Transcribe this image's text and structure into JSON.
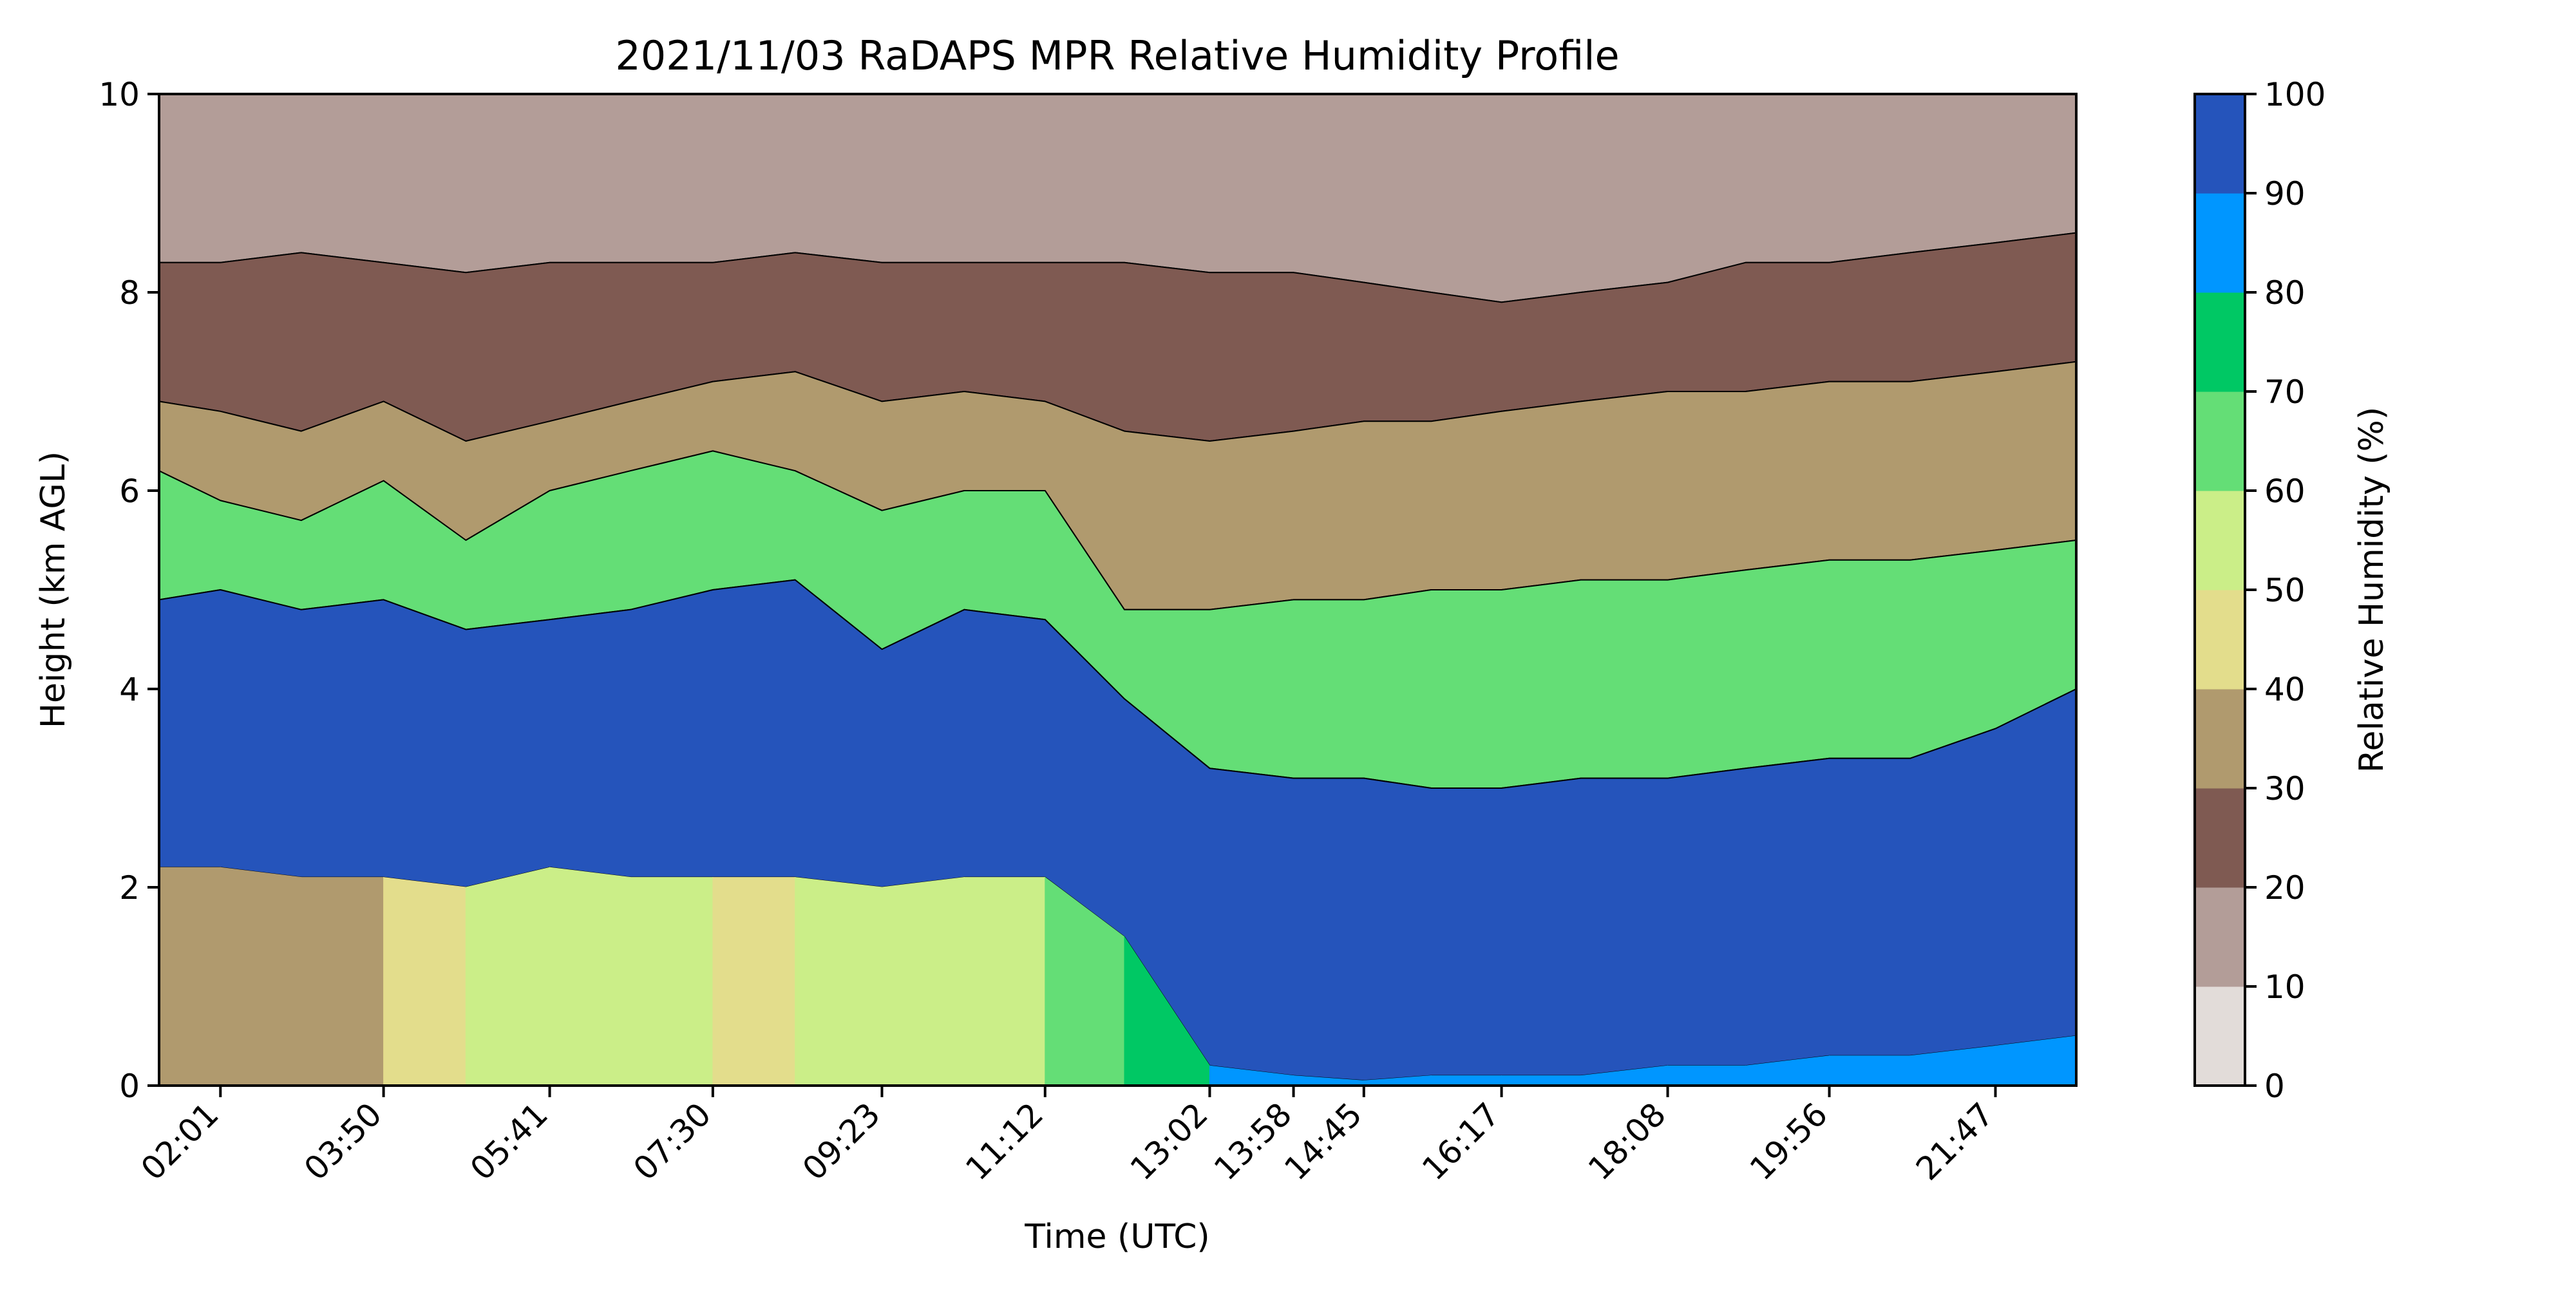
{
  "chart_data": {
    "type": "heatmap",
    "title": "2021/11/03 RaDAPS MPR Relative Humidity Profile",
    "xlabel": "Time (UTC)",
    "ylabel": "Height (km AGL)",
    "x_start": "01:20",
    "x_end": "22:41",
    "x_ticks": [
      "02:01",
      "03:50",
      "05:41",
      "07:30",
      "09:23",
      "11:12",
      "13:02",
      "13:58",
      "14:45",
      "16:17",
      "18:08",
      "19:56",
      "21:47"
    ],
    "ylim": [
      0,
      10
    ],
    "y_ticks": [
      0,
      2,
      4,
      6,
      8,
      10
    ],
    "colorbar": {
      "label": "Relative Humidity (%)",
      "levels": [
        0,
        10,
        20,
        30,
        40,
        50,
        60,
        70,
        80,
        90,
        100
      ],
      "colors": [
        "#e2dcd9",
        "#b39d98",
        "#7f5a52",
        "#b09a6e",
        "#e3dd8c",
        "#cbee88",
        "#64de76",
        "#00c864",
        "#0096ff",
        "#2554bb"
      ]
    },
    "rh_boundaries_km": {
      "note_levels": "heights (km AGL) where RH crosses each level; rows = times",
      "times": [
        "01:20",
        "02:01",
        "02:55",
        "03:50",
        "04:45",
        "05:41",
        "06:35",
        "07:30",
        "08:25",
        "09:23",
        "10:18",
        "11:12",
        "12:05",
        "13:02",
        "13:58",
        "14:45",
        "15:30",
        "16:17",
        "17:10",
        "18:08",
        "19:00",
        "19:56",
        "20:50",
        "21:47",
        "22:41"
      ],
      "rh20_top": [
        8.3,
        8.3,
        8.4,
        8.3,
        8.2,
        8.3,
        8.3,
        8.3,
        8.4,
        8.3,
        8.3,
        8.3,
        8.3,
        8.2,
        8.2,
        8.1,
        8.0,
        7.9,
        8.0,
        8.1,
        8.3,
        8.3,
        8.4,
        8.5,
        8.6
      ],
      "rh30_top": [
        6.9,
        6.8,
        6.6,
        6.9,
        6.5,
        6.7,
        6.9,
        7.1,
        7.2,
        6.9,
        7.0,
        6.9,
        6.6,
        6.5,
        6.6,
        6.7,
        6.7,
        6.8,
        6.9,
        7.0,
        7.0,
        7.1,
        7.1,
        7.2,
        7.3
      ],
      "rh50_top": [
        6.2,
        5.9,
        5.7,
        6.1,
        5.5,
        6.0,
        6.2,
        6.4,
        6.2,
        5.8,
        6.0,
        6.0,
        4.8,
        4.8,
        4.9,
        4.9,
        5.0,
        5.0,
        5.1,
        5.1,
        5.2,
        5.3,
        5.3,
        5.4,
        5.5
      ],
      "rh80_top": [
        4.9,
        5.0,
        4.8,
        4.9,
        4.6,
        4.7,
        4.8,
        5.0,
        5.1,
        4.4,
        4.8,
        4.7,
        3.9,
        3.2,
        3.1,
        3.1,
        3.0,
        3.0,
        3.1,
        3.1,
        3.2,
        3.3,
        3.3,
        3.6,
        4.0
      ],
      "low_top": [
        2.2,
        2.2,
        2.1,
        2.1,
        2.0,
        2.2,
        2.1,
        2.1,
        2.1,
        2.0,
        2.1,
        2.1,
        1.5,
        0.2,
        0.1,
        0.05,
        0.1,
        0.1,
        0.1,
        0.2,
        0.2,
        0.3,
        0.3,
        0.4,
        0.5
      ],
      "low_rh": [
        35,
        35,
        40,
        38,
        45,
        55,
        55,
        50,
        45,
        55,
        50,
        60,
        70,
        85,
        85,
        85,
        85,
        85,
        85,
        85,
        85,
        85,
        85,
        85,
        85
      ]
    }
  }
}
